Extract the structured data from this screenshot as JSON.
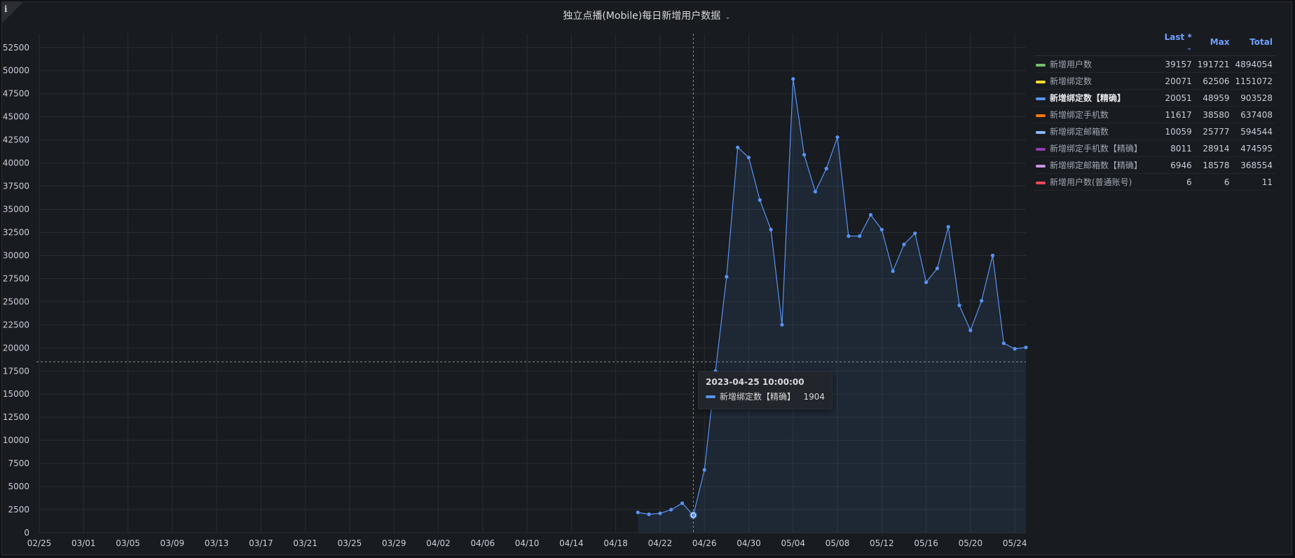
{
  "panel": {
    "title": "独立点播(Mobile)每日新增用户数据",
    "info_glyph": "i"
  },
  "legend": {
    "headers": {
      "last": "Last *",
      "max": "Max",
      "total": "Total"
    },
    "items": [
      {
        "name": "新增用户数",
        "color": "#73bf69",
        "last": "39157",
        "max": "191721",
        "total": "4894054",
        "active": false
      },
      {
        "name": "新增绑定数",
        "color": "#fade2a",
        "last": "20071",
        "max": "62506",
        "total": "1151072",
        "active": false
      },
      {
        "name": "新增绑定数【精确】",
        "color": "#5794f2",
        "last": "20051",
        "max": "48959",
        "total": "903528",
        "active": true
      },
      {
        "name": "新增绑定手机数",
        "color": "#ff780a",
        "last": "11617",
        "max": "38580",
        "total": "637408",
        "active": false
      },
      {
        "name": "新增绑定邮箱数",
        "color": "#8ab8ff",
        "last": "10059",
        "max": "25777",
        "total": "594544",
        "active": false
      },
      {
        "name": "新增绑定手机数【精确】",
        "color": "#8f3bb8",
        "last": "8011",
        "max": "28914",
        "total": "474595",
        "active": false
      },
      {
        "name": "新增绑定邮箱数【精确】",
        "color": "#ca95e5",
        "last": "6946",
        "max": "18578",
        "total": "368554",
        "active": false
      },
      {
        "name": "新增用户数(普通账号)",
        "color": "#f2495c",
        "last": "6",
        "max": "6",
        "total": "11",
        "active": false
      }
    ]
  },
  "tooltip": {
    "time": "2023-04-25 10:00:00",
    "series": "新增绑定数【精确】",
    "value": "1904",
    "color": "#5794f2"
  },
  "chart_data": {
    "type": "line",
    "x_tick_labels": [
      "02/25",
      "03/01",
      "03/05",
      "03/09",
      "03/13",
      "03/17",
      "03/21",
      "03/25",
      "03/29",
      "04/02",
      "04/06",
      "04/10",
      "04/14",
      "04/18",
      "04/22",
      "04/26",
      "04/30",
      "05/04",
      "05/08",
      "05/12",
      "05/16",
      "05/20",
      "05/24"
    ],
    "y_tick_labels": [
      "0",
      "2500",
      "5000",
      "7500",
      "10000",
      "12500",
      "15000",
      "17500",
      "20000",
      "22500",
      "25000",
      "27500",
      "30000",
      "32500",
      "35000",
      "37500",
      "40000",
      "42500",
      "45000",
      "47500",
      "50000",
      "52500"
    ],
    "ylim": [
      0,
      54000
    ],
    "x_range": [
      "2023-02-25",
      "2023-05-25"
    ],
    "grid": true,
    "legend_position": "right",
    "series": [
      {
        "name": "新增绑定数【精确】",
        "color": "#5794f2",
        "points": [
          [
            "2023-04-20",
            2200
          ],
          [
            "2023-04-21",
            2000
          ],
          [
            "2023-04-22",
            2100
          ],
          [
            "2023-04-23",
            2500
          ],
          [
            "2023-04-24",
            3200
          ],
          [
            "2023-04-25",
            1904
          ],
          [
            "2023-04-26",
            6800
          ],
          [
            "2023-04-27",
            17500
          ],
          [
            "2023-04-28",
            27700
          ],
          [
            "2023-04-29",
            41700
          ],
          [
            "2023-04-30",
            40600
          ],
          [
            "2023-05-01",
            36000
          ],
          [
            "2023-05-02",
            32800
          ],
          [
            "2023-05-03",
            22500
          ],
          [
            "2023-05-04",
            49100
          ],
          [
            "2023-05-05",
            40900
          ],
          [
            "2023-05-06",
            36900
          ],
          [
            "2023-05-07",
            39400
          ],
          [
            "2023-05-08",
            42800
          ],
          [
            "2023-05-09",
            32100
          ],
          [
            "2023-05-10",
            32100
          ],
          [
            "2023-05-11",
            34400
          ],
          [
            "2023-05-12",
            32800
          ],
          [
            "2023-05-13",
            28300
          ],
          [
            "2023-05-14",
            31200
          ],
          [
            "2023-05-15",
            32400
          ],
          [
            "2023-05-16",
            27100
          ],
          [
            "2023-05-17",
            28600
          ],
          [
            "2023-05-18",
            33100
          ],
          [
            "2023-05-19",
            24600
          ],
          [
            "2023-05-20",
            21900
          ],
          [
            "2023-05-21",
            25100
          ],
          [
            "2023-05-22",
            30000
          ],
          [
            "2023-05-23",
            20500
          ],
          [
            "2023-05-24",
            19900
          ],
          [
            "2023-05-25",
            20051
          ]
        ]
      }
    ],
    "hover": {
      "x": "2023-04-25",
      "y": 18500
    }
  }
}
